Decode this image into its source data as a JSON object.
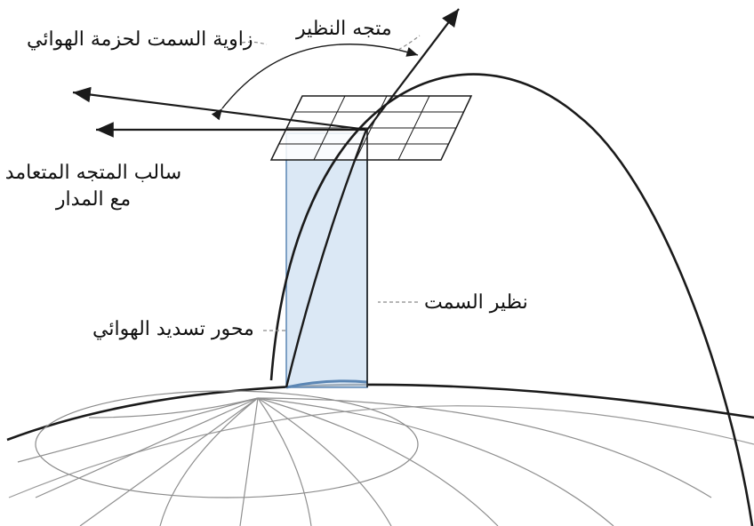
{
  "labels": {
    "zenith_vector": "متجه النظير",
    "azimuth_angle": "زاوية السمت لحزمة الهوائي",
    "negative_orbit_normal": "سالب المتجه المتعامد مع المدار",
    "azimuth_nadir": "نظير السمت",
    "antenna_pointing_axis": "محور تسديد الهوائي"
  },
  "colors": {
    "line": "#1a1a1a",
    "grid": "#9a9a9a",
    "column_fill": "#cfe0f2",
    "column_stroke": "#5b86b4"
  }
}
